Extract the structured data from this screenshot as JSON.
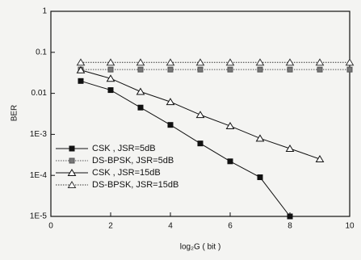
{
  "chart_data": {
    "type": "line",
    "log_y": true,
    "xlabel": "log₂G ( bit )",
    "ylabel": "BER",
    "xlim": [
      0,
      10
    ],
    "xticks": [
      0,
      2,
      4,
      6,
      8,
      10
    ],
    "ylim": [
      1e-05,
      1
    ],
    "yticks": [
      {
        "value": 1,
        "label": "1"
      },
      {
        "value": 0.1,
        "label": "0.1"
      },
      {
        "value": 0.01,
        "label": "0.01"
      },
      {
        "value": 0.001,
        "label": "1E-3"
      },
      {
        "value": 0.0001,
        "label": "1E-4"
      },
      {
        "value": 1e-05,
        "label": "1E-5"
      }
    ],
    "legend": "lower-left",
    "series": [
      {
        "name": "CSK , JSR=5dB",
        "color": "#111111",
        "marker": "square-filled",
        "dash": "solid",
        "x": [
          1,
          2,
          3,
          4,
          5,
          6,
          7,
          8
        ],
        "values": [
          0.02,
          0.012,
          0.0045,
          0.0017,
          0.0006,
          0.00022,
          9e-05,
          1e-05
        ]
      },
      {
        "name": "DS-BPSK, JSR=5dB",
        "color": "#555555",
        "marker": "square-gray",
        "dash": "dotted",
        "x": [
          1,
          2,
          3,
          4,
          5,
          6,
          7,
          8,
          9,
          10
        ],
        "values": [
          0.038,
          0.038,
          0.038,
          0.038,
          0.038,
          0.038,
          0.038,
          0.038,
          0.038,
          0.038
        ]
      },
      {
        "name": "CSK , JSR=15dB",
        "color": "#111111",
        "marker": "triangle-open",
        "dash": "solid",
        "x": [
          1,
          2,
          3,
          4,
          5,
          6,
          7,
          8,
          9
        ],
        "values": [
          0.037,
          0.023,
          0.011,
          0.0062,
          0.003,
          0.0016,
          0.0008,
          0.00045,
          0.00025
        ]
      },
      {
        "name": "DS-BPSK, JSR=15dB",
        "color": "#333333",
        "marker": "triangle-open",
        "dash": "dotted",
        "x": [
          1,
          2,
          3,
          4,
          5,
          6,
          7,
          8,
          9,
          10
        ],
        "values": [
          0.057,
          0.057,
          0.057,
          0.057,
          0.057,
          0.057,
          0.057,
          0.057,
          0.057,
          0.057
        ]
      }
    ]
  }
}
